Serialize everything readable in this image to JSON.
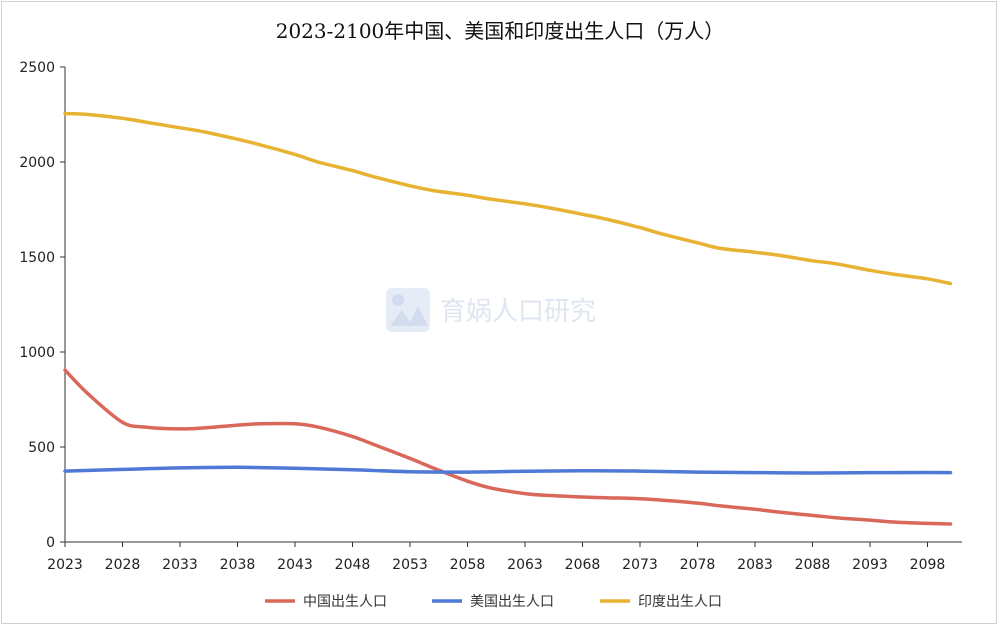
{
  "chart_data": {
    "type": "line",
    "title": "2023-2100年中国、美国和印度出生人口（万人）",
    "xlabel": "",
    "ylabel": "",
    "ylim": [
      0,
      2500
    ],
    "y_ticks": [
      0,
      500,
      1000,
      1500,
      2000,
      2500
    ],
    "x_tick_labels": [
      "2023",
      "2028",
      "2033",
      "2038",
      "2043",
      "2048",
      "2053",
      "2058",
      "2063",
      "2068",
      "2073",
      "2078",
      "2083",
      "2088",
      "2093",
      "2098"
    ],
    "xlim": [
      2023,
      2101
    ],
    "grid": false,
    "legend_position": "bottom",
    "series": [
      {
        "name": "中国出生人口",
        "color": "#d9685a",
        "x": [
          2023,
          2025,
          2028,
          2030,
          2033,
          2035,
          2038,
          2040,
          2043,
          2045,
          2048,
          2050,
          2053,
          2055,
          2058,
          2060,
          2063,
          2065,
          2068,
          2070,
          2073,
          2075,
          2078,
          2080,
          2083,
          2085,
          2088,
          2090,
          2093,
          2095,
          2098,
          2100
        ],
        "values": [
          905,
          780,
          630,
          605,
          595,
          600,
          615,
          622,
          622,
          605,
          555,
          510,
          440,
          390,
          320,
          285,
          255,
          245,
          237,
          233,
          228,
          220,
          205,
          190,
          172,
          158,
          140,
          128,
          115,
          105,
          98,
          95
        ]
      },
      {
        "name": "美国出生人口",
        "color": "#4f79d6",
        "x": [
          2023,
          2028,
          2033,
          2038,
          2043,
          2048,
          2053,
          2058,
          2063,
          2068,
          2073,
          2078,
          2083,
          2088,
          2093,
          2098,
          2100
        ],
        "values": [
          373,
          382,
          390,
          393,
          388,
          380,
          370,
          368,
          372,
          375,
          373,
          368,
          365,
          363,
          365,
          366,
          365
        ]
      },
      {
        "name": "印度出生人口",
        "color": "#e8b233",
        "x": [
          2023,
          2025,
          2028,
          2030,
          2033,
          2035,
          2038,
          2040,
          2043,
          2045,
          2048,
          2050,
          2053,
          2055,
          2058,
          2060,
          2063,
          2065,
          2068,
          2070,
          2073,
          2075,
          2078,
          2080,
          2083,
          2085,
          2088,
          2090,
          2093,
          2095,
          2098,
          2100
        ],
        "values": [
          2255,
          2250,
          2230,
          2210,
          2180,
          2160,
          2120,
          2090,
          2040,
          2000,
          1955,
          1920,
          1875,
          1850,
          1825,
          1805,
          1780,
          1760,
          1725,
          1700,
          1655,
          1620,
          1575,
          1545,
          1525,
          1510,
          1480,
          1465,
          1430,
          1410,
          1385,
          1360
        ]
      }
    ]
  },
  "watermark": {
    "text": "育娲人口研究",
    "color": "#dfe6f2"
  }
}
